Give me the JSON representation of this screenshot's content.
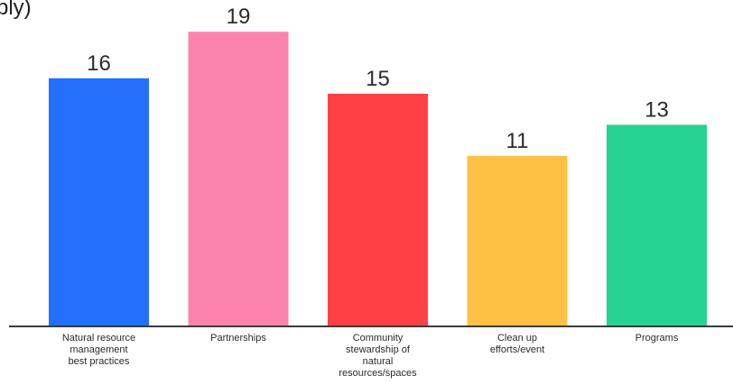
{
  "chart_data": {
    "type": "bar",
    "title": "",
    "subtitle": "",
    "partial_title_text": "ply)",
    "xlabel": "",
    "ylabel": "",
    "ylim": [
      0,
      19
    ],
    "grid": false,
    "legend": "none",
    "categories": [
      "Natural resource management best practices",
      "Partnerships",
      "Community stewardship of natural resources/spaces",
      "Clean up efforts/event",
      "Programs"
    ],
    "category_label_lines": [
      [
        "Natural resource",
        "management",
        "best practices"
      ],
      [
        "Partnerships"
      ],
      [
        "Community",
        "stewardship of",
        "natural",
        "resources/spaces"
      ],
      [
        "Clean up",
        "efforts/event"
      ],
      [
        "Programs"
      ]
    ],
    "values": [
      16,
      19,
      15,
      11,
      13
    ],
    "colors": [
      "#2270fb",
      "#fc83ad",
      "#ff4044",
      "#fec143",
      "#27d392"
    ],
    "axis_color": "#3a3a3a"
  }
}
